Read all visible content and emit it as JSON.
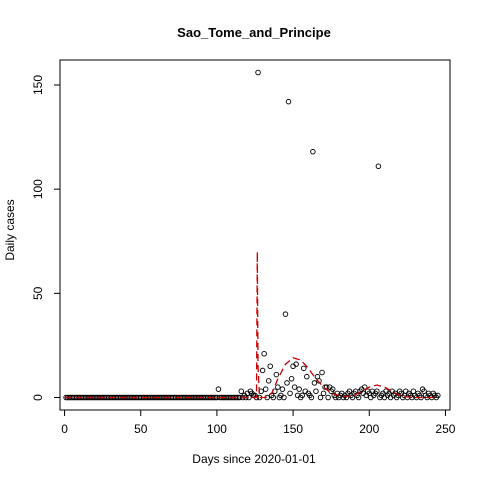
{
  "chart_data": {
    "type": "scatter",
    "title": "Sao_Tome_and_Principe",
    "xlabel": "Days since 2020-01-01",
    "ylabel": "Daily cases",
    "xlim": [
      -3,
      253
    ],
    "ylim": [
      -6,
      162
    ],
    "x_ticks": [
      0,
      50,
      100,
      150,
      200,
      250
    ],
    "y_ticks": [
      0,
      50,
      100,
      150
    ],
    "grid": false,
    "legend": "none",
    "colors": {
      "points": "#000000",
      "fit_line": "#cc0000",
      "axis": "#000000"
    },
    "points": [
      [
        1,
        0
      ],
      [
        2,
        0
      ],
      [
        3,
        0
      ],
      [
        4,
        0
      ],
      [
        5,
        0
      ],
      [
        6,
        0
      ],
      [
        7,
        0
      ],
      [
        8,
        0
      ],
      [
        9,
        0
      ],
      [
        10,
        0
      ],
      [
        11,
        0
      ],
      [
        12,
        0
      ],
      [
        13,
        0
      ],
      [
        14,
        0
      ],
      [
        15,
        0
      ],
      [
        16,
        0
      ],
      [
        17,
        0
      ],
      [
        18,
        0
      ],
      [
        19,
        0
      ],
      [
        20,
        0
      ],
      [
        21,
        0
      ],
      [
        22,
        0
      ],
      [
        23,
        0
      ],
      [
        24,
        0
      ],
      [
        25,
        0
      ],
      [
        26,
        0
      ],
      [
        27,
        0
      ],
      [
        28,
        0
      ],
      [
        29,
        0
      ],
      [
        30,
        0
      ],
      [
        31,
        0
      ],
      [
        32,
        0
      ],
      [
        33,
        0
      ],
      [
        34,
        0
      ],
      [
        35,
        0
      ],
      [
        36,
        0
      ],
      [
        37,
        0
      ],
      [
        38,
        0
      ],
      [
        39,
        0
      ],
      [
        40,
        0
      ],
      [
        41,
        0
      ],
      [
        42,
        0
      ],
      [
        43,
        0
      ],
      [
        44,
        0
      ],
      [
        45,
        0
      ],
      [
        46,
        0
      ],
      [
        47,
        0
      ],
      [
        48,
        0
      ],
      [
        49,
        0
      ],
      [
        50,
        0
      ],
      [
        51,
        0
      ],
      [
        52,
        0
      ],
      [
        53,
        0
      ],
      [
        54,
        0
      ],
      [
        55,
        0
      ],
      [
        56,
        0
      ],
      [
        57,
        0
      ],
      [
        58,
        0
      ],
      [
        59,
        0
      ],
      [
        60,
        0
      ],
      [
        61,
        0
      ],
      [
        62,
        0
      ],
      [
        63,
        0
      ],
      [
        64,
        0
      ],
      [
        65,
        0
      ],
      [
        66,
        0
      ],
      [
        67,
        0
      ],
      [
        68,
        0
      ],
      [
        69,
        0
      ],
      [
        70,
        0
      ],
      [
        71,
        0
      ],
      [
        72,
        0
      ],
      [
        73,
        0
      ],
      [
        74,
        0
      ],
      [
        75,
        0
      ],
      [
        76,
        0
      ],
      [
        77,
        0
      ],
      [
        78,
        0
      ],
      [
        79,
        0
      ],
      [
        80,
        0
      ],
      [
        81,
        0
      ],
      [
        82,
        0
      ],
      [
        83,
        0
      ],
      [
        84,
        0
      ],
      [
        85,
        0
      ],
      [
        86,
        0
      ],
      [
        87,
        0
      ],
      [
        88,
        0
      ],
      [
        89,
        0
      ],
      [
        90,
        0
      ],
      [
        91,
        0
      ],
      [
        92,
        0
      ],
      [
        93,
        0
      ],
      [
        94,
        0
      ],
      [
        95,
        0
      ],
      [
        96,
        0
      ],
      [
        97,
        0
      ],
      [
        98,
        0
      ],
      [
        99,
        0
      ],
      [
        100,
        0
      ],
      [
        101,
        4
      ],
      [
        102,
        0
      ],
      [
        103,
        0
      ],
      [
        104,
        0
      ],
      [
        105,
        0
      ],
      [
        106,
        0
      ],
      [
        107,
        0
      ],
      [
        108,
        0
      ],
      [
        109,
        0
      ],
      [
        110,
        0
      ],
      [
        111,
        0
      ],
      [
        112,
        0
      ],
      [
        113,
        0
      ],
      [
        114,
        0
      ],
      [
        115,
        0
      ],
      [
        116,
        3
      ],
      [
        117,
        0
      ],
      [
        118,
        1
      ],
      [
        119,
        0
      ],
      [
        120,
        2
      ],
      [
        121,
        0
      ],
      [
        122,
        3
      ],
      [
        123,
        2
      ],
      [
        124,
        1
      ],
      [
        125,
        1
      ],
      [
        126,
        0
      ],
      [
        127,
        156
      ],
      [
        128,
        0
      ],
      [
        129,
        3
      ],
      [
        130,
        13
      ],
      [
        131,
        21
      ],
      [
        132,
        4
      ],
      [
        133,
        0
      ],
      [
        134,
        8
      ],
      [
        135,
        15
      ],
      [
        136,
        1
      ],
      [
        137,
        0
      ],
      [
        138,
        3
      ],
      [
        139,
        11
      ],
      [
        140,
        5
      ],
      [
        141,
        0
      ],
      [
        142,
        1
      ],
      [
        143,
        4
      ],
      [
        144,
        0
      ],
      [
        145,
        40
      ],
      [
        146,
        7
      ],
      [
        147,
        142
      ],
      [
        148,
        2
      ],
      [
        149,
        9
      ],
      [
        150,
        15
      ],
      [
        151,
        5
      ],
      [
        152,
        16
      ],
      [
        153,
        1
      ],
      [
        154,
        4
      ],
      [
        155,
        0
      ],
      [
        156,
        1
      ],
      [
        157,
        14
      ],
      [
        158,
        3
      ],
      [
        159,
        10
      ],
      [
        160,
        2
      ],
      [
        161,
        1
      ],
      [
        162,
        0
      ],
      [
        163,
        118
      ],
      [
        164,
        7
      ],
      [
        165,
        3
      ],
      [
        166,
        10
      ],
      [
        167,
        8
      ],
      [
        168,
        0
      ],
      [
        169,
        12
      ],
      [
        170,
        2
      ],
      [
        171,
        5
      ],
      [
        172,
        5
      ],
      [
        173,
        0
      ],
      [
        174,
        5
      ],
      [
        175,
        3
      ],
      [
        176,
        4
      ],
      [
        177,
        1
      ],
      [
        178,
        0
      ],
      [
        179,
        2
      ],
      [
        180,
        0
      ],
      [
        181,
        1
      ],
      [
        182,
        2
      ],
      [
        183,
        0
      ],
      [
        184,
        1
      ],
      [
        185,
        0
      ],
      [
        186,
        2
      ],
      [
        187,
        3
      ],
      [
        188,
        1
      ],
      [
        189,
        0
      ],
      [
        190,
        2
      ],
      [
        191,
        3
      ],
      [
        192,
        1
      ],
      [
        193,
        0
      ],
      [
        194,
        3
      ],
      [
        195,
        4
      ],
      [
        196,
        2
      ],
      [
        197,
        5
      ],
      [
        198,
        1
      ],
      [
        199,
        3
      ],
      [
        200,
        2
      ],
      [
        201,
        0
      ],
      [
        202,
        3
      ],
      [
        203,
        1
      ],
      [
        204,
        2
      ],
      [
        205,
        3
      ],
      [
        206,
        111
      ],
      [
        207,
        0
      ],
      [
        208,
        1
      ],
      [
        209,
        2
      ],
      [
        210,
        0
      ],
      [
        211,
        3
      ],
      [
        212,
        1
      ],
      [
        213,
        2
      ],
      [
        214,
        0
      ],
      [
        215,
        3
      ],
      [
        216,
        1
      ],
      [
        217,
        2
      ],
      [
        218,
        0
      ],
      [
        219,
        1
      ],
      [
        220,
        3
      ],
      [
        221,
        2
      ],
      [
        222,
        0
      ],
      [
        223,
        1
      ],
      [
        224,
        3
      ],
      [
        225,
        0
      ],
      [
        226,
        2
      ],
      [
        227,
        1
      ],
      [
        228,
        0
      ],
      [
        229,
        3
      ],
      [
        230,
        1
      ],
      [
        231,
        0
      ],
      [
        232,
        2
      ],
      [
        233,
        1
      ],
      [
        234,
        0
      ],
      [
        235,
        4
      ],
      [
        236,
        3
      ],
      [
        237,
        1
      ],
      [
        238,
        0
      ],
      [
        239,
        2
      ],
      [
        240,
        1
      ],
      [
        241,
        0
      ],
      [
        242,
        2
      ],
      [
        243,
        1
      ],
      [
        244,
        0
      ],
      [
        245,
        1
      ]
    ],
    "fit_line": [
      [
        0,
        0
      ],
      [
        50,
        0
      ],
      [
        100,
        0
      ],
      [
        126,
        0
      ],
      [
        126.5,
        70
      ],
      [
        127,
        15
      ],
      [
        128,
        0
      ],
      [
        132,
        0
      ],
      [
        136,
        2
      ],
      [
        140,
        9
      ],
      [
        145,
        16
      ],
      [
        150,
        19
      ],
      [
        155,
        18
      ],
      [
        160,
        14
      ],
      [
        165,
        9
      ],
      [
        170,
        5
      ],
      [
        175,
        2
      ],
      [
        180,
        1
      ],
      [
        185,
        0.5
      ],
      [
        190,
        1
      ],
      [
        195,
        3
      ],
      [
        200,
        5
      ],
      [
        205,
        6
      ],
      [
        210,
        5
      ],
      [
        215,
        3
      ],
      [
        220,
        1
      ],
      [
        225,
        0.3
      ],
      [
        230,
        0
      ],
      [
        245,
        0
      ]
    ]
  }
}
